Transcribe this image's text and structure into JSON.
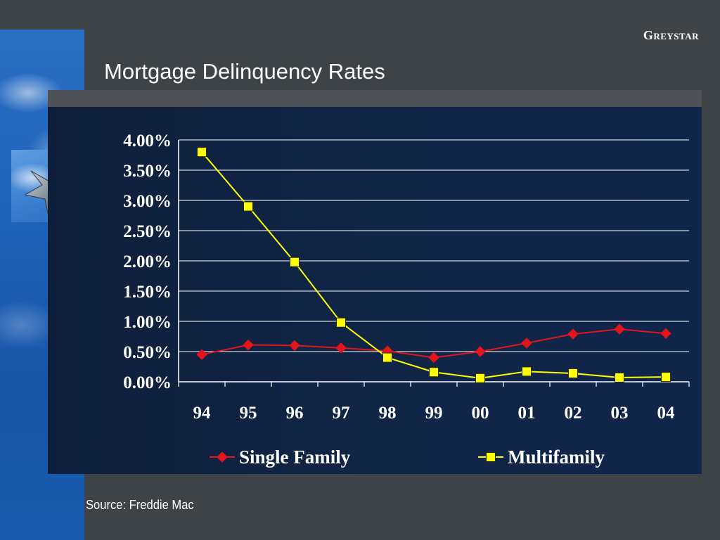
{
  "header": {
    "brand": "Greystar",
    "title": "Mortgage Delinquency Rates"
  },
  "footer": {
    "source": "Source: Freddie Mac"
  },
  "decor": {
    "star_icon": "star-icon",
    "backdrop": "sky-photo"
  },
  "colors": {
    "single_family": "#e3141b",
    "multifamily": "#ffff00",
    "panel": "#112547",
    "grid": "#ffffff"
  },
  "chart_data": {
    "type": "line",
    "title": "",
    "xlabel": "",
    "ylabel": "",
    "categories": [
      "94",
      "95",
      "96",
      "97",
      "98",
      "99",
      "00",
      "01",
      "02",
      "03",
      "04"
    ],
    "y_ticks": [
      "0.00%",
      "0.50%",
      "1.00%",
      "1.50%",
      "2.00%",
      "2.50%",
      "3.00%",
      "3.50%",
      "4.00%"
    ],
    "ylim": [
      0,
      4
    ],
    "grid": true,
    "legend_position": "bottom",
    "series": [
      {
        "name": "Single Family",
        "marker": "diamond",
        "color": "#e3141b",
        "values": [
          0.45,
          0.61,
          0.6,
          0.56,
          0.51,
          0.4,
          0.5,
          0.64,
          0.79,
          0.87,
          0.8
        ]
      },
      {
        "name": "Multifamily",
        "marker": "square",
        "color": "#ffff00",
        "values": [
          3.8,
          2.9,
          1.98,
          0.98,
          0.4,
          0.16,
          0.06,
          0.17,
          0.14,
          0.07,
          0.08
        ]
      }
    ]
  }
}
